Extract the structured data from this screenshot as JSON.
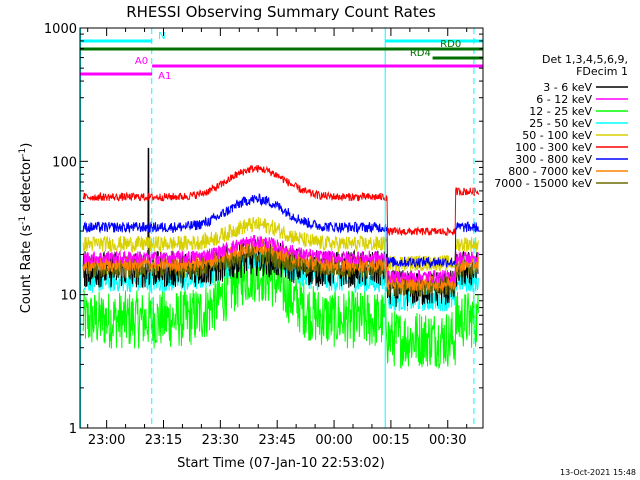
{
  "chart_data": {
    "type": "line",
    "title": "RHESSI Observing Summary Count Rates",
    "xlabel": "Start Time (07-Jan-10 22:53:02)",
    "ylabel_main": "Count Rate (s",
    "ylabel_sup1": "-1",
    "ylabel_mid": " detector",
    "ylabel_sup2": "-1",
    "ylabel_end": ")",
    "ylabel": "Count Rate (s^-1 detector^-1)",
    "yscale": "log",
    "ylim": [
      1,
      1000
    ],
    "xlim_minutes": [
      -7.03,
      99.3
    ],
    "x_unit": "minutes after 23:00 UT",
    "x_ticks": [
      {
        "label": "23:00",
        "value": 0
      },
      {
        "label": "23:15",
        "value": 15
      },
      {
        "label": "23:30",
        "value": 30
      },
      {
        "label": "23:45",
        "value": 45
      },
      {
        "label": "00:00",
        "value": 60
      },
      {
        "label": "00:15",
        "value": 75
      },
      {
        "label": "00:30",
        "value": 90
      }
    ],
    "y_ticks": [
      {
        "label": "1",
        "value": 1
      },
      {
        "label": "10",
        "value": 10
      },
      {
        "label": "100",
        "value": 100
      },
      {
        "label": "1000",
        "value": 1000
      }
    ],
    "legend_header": [
      "Det 1,3,4,5,6,9,",
      "FDecim 1"
    ],
    "series": [
      {
        "name": "3 - 6 keV",
        "color": "#000000",
        "base": 15.5,
        "amp": 3.5,
        "noise": 0.14,
        "spike_at_start": true
      },
      {
        "name": "6 - 12 keV",
        "color": "#ff00ff",
        "base": 19,
        "amp": 6,
        "noise": 0.05
      },
      {
        "name": "12 - 25 keV",
        "color": "#00ff00",
        "base": 6.5,
        "amp": 8,
        "noise": 0.22
      },
      {
        "name": "25 - 50 keV",
        "color": "#00ffff",
        "base": 12.5,
        "amp": 6.5,
        "noise": 0.08
      },
      {
        "name": "50 - 100 keV",
        "color": "#d8d000",
        "base": 24,
        "amp": 9.5,
        "noise": 0.06
      },
      {
        "name": "100 - 300 keV",
        "color": "#ff0000",
        "base": 54,
        "amp": 34,
        "noise": 0.03
      },
      {
        "name": "300 - 800 keV",
        "color": "#0000ff",
        "base": 32,
        "amp": 20,
        "noise": 0.04
      },
      {
        "name": "800 - 7000 keV",
        "color": "#ff8000",
        "base": 17,
        "amp": 6,
        "noise": 0.06
      },
      {
        "name": "7000 - 15000 keV",
        "color": "#6b6b00",
        "base": 16,
        "amp": 4,
        "noise": 0.08
      }
    ],
    "data_gaps_minutes": [
      [
        -7.0,
        -6.2
      ],
      [
        98.2,
        99.3
      ]
    ],
    "step_change": {
      "at_minutes": 73.5,
      "label": "RD4"
    },
    "vertical_markers": [
      {
        "type": "solid",
        "color": "#00ffff",
        "x_minutes": -6.9
      },
      {
        "type": "dashed",
        "color": "#00ffff",
        "x_minutes": 11.9
      },
      {
        "type": "solid",
        "color": "#00ffff",
        "x_minutes": 73.5
      },
      {
        "type": "dashed",
        "color": "#00ffff",
        "x_minutes": 96.9
      }
    ],
    "flag_bars": [
      {
        "label": "N",
        "color": "#00ffff",
        "start_minutes": -7.0,
        "end_minutes": 12.0,
        "row": 1,
        "label_side": "right-of-end"
      },
      {
        "label": "N",
        "color": "#00ffff",
        "start_minutes": 73.5,
        "end_minutes": 99.3,
        "row": 1,
        "no_label": true
      },
      {
        "label": "RD0",
        "color": "#007000",
        "start_minutes": -7.0,
        "end_minutes": 99.3,
        "row": 2,
        "label_at_minutes": 88
      },
      {
        "label": "RD4",
        "color": "#007000",
        "start_minutes": 86.0,
        "end_minutes": 99.3,
        "row": 3,
        "label_at_minutes": 80
      },
      {
        "label": "A0",
        "color": "#ff00ff",
        "start_minutes": 12.0,
        "end_minutes": 99.3,
        "row": 4,
        "label_side": "left-of-start"
      },
      {
        "label": "A1",
        "color": "#ff00ff",
        "start_minutes": -7.0,
        "end_minutes": 12.0,
        "row": 5,
        "label_side": "right-of-end"
      }
    ]
  },
  "footer": {
    "timestamp": "13-Oct-2021 15:48"
  }
}
